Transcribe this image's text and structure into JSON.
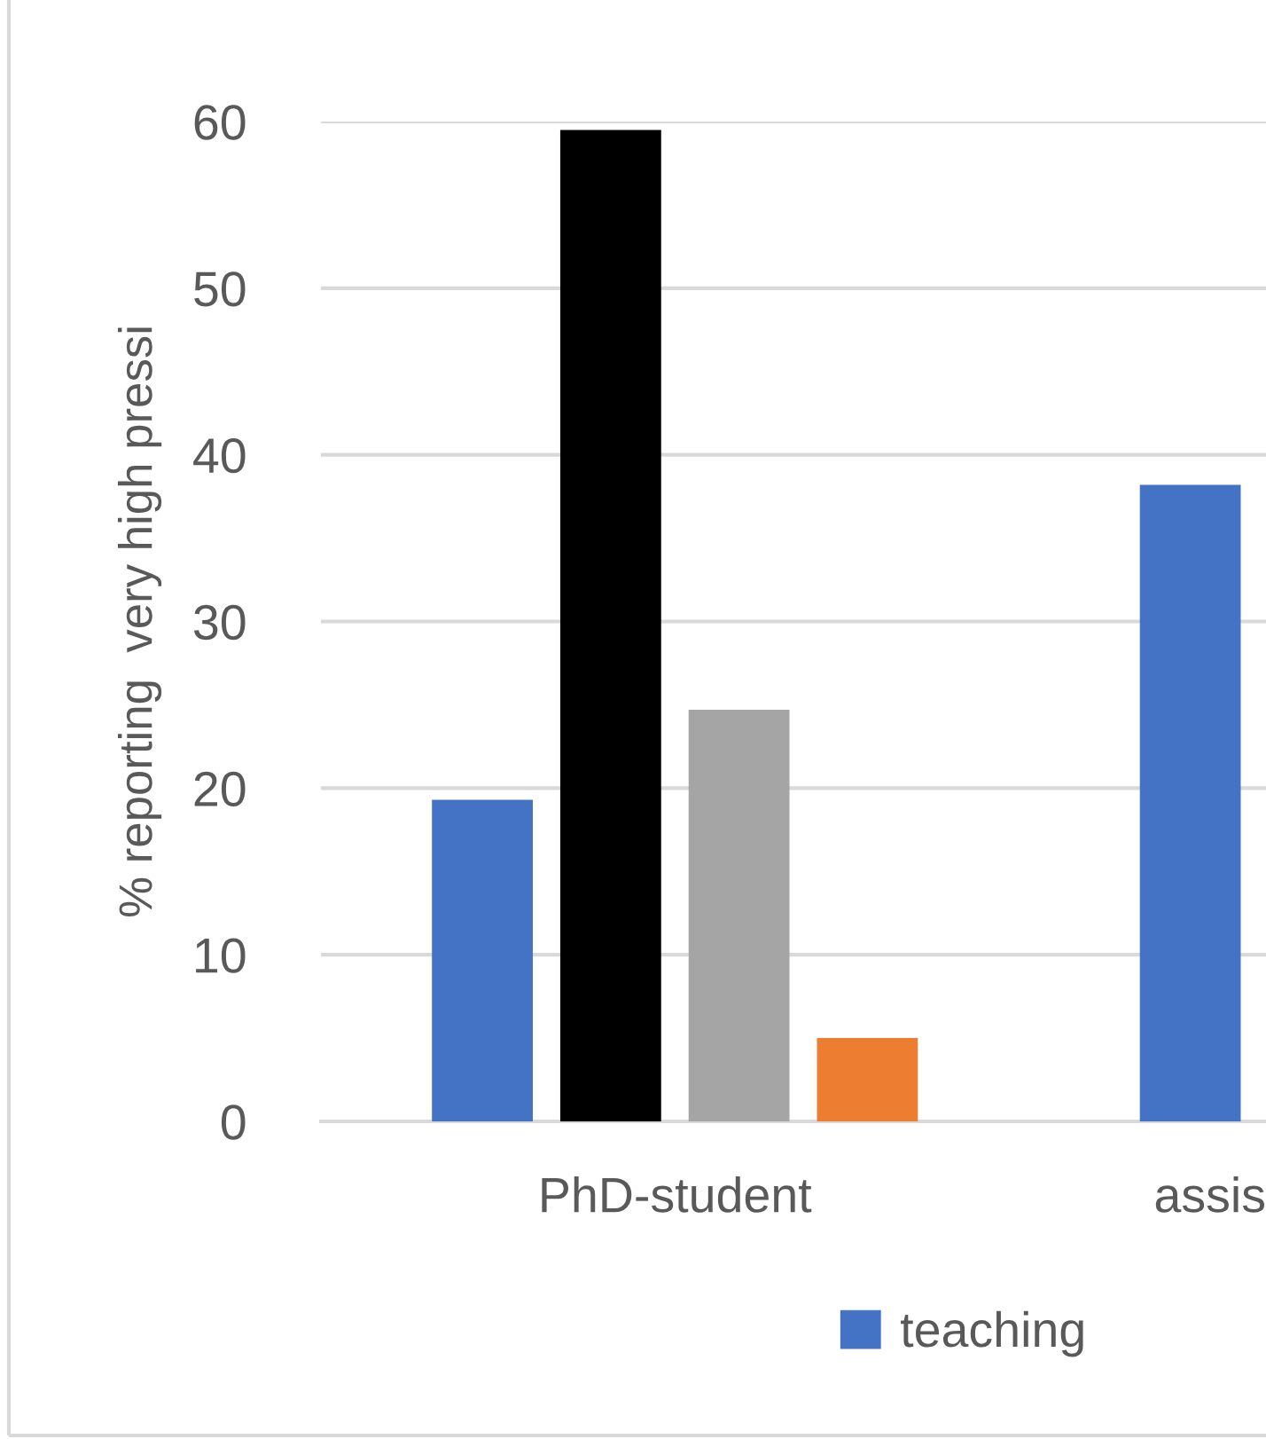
{
  "chart_data": {
    "type": "bar",
    "ylabel": "% reporting  very high pressi",
    "categories": [
      "PhD-student",
      "assis"
    ],
    "series": [
      {
        "name": "teaching",
        "color": "#4472c4",
        "values": [
          19.3,
          38.2
        ]
      },
      {
        "color": "#000000",
        "values": [
          59.5,
          null
        ]
      },
      {
        "color": "#a5a5a5",
        "values": [
          24.7,
          null
        ]
      },
      {
        "color": "#ed7d31",
        "values": [
          5.0,
          null
        ]
      }
    ],
    "ylim": [
      0,
      60
    ],
    "yticks": [
      0,
      10,
      20,
      30,
      40,
      50,
      60
    ],
    "grid": "y",
    "legend": "bottom"
  }
}
